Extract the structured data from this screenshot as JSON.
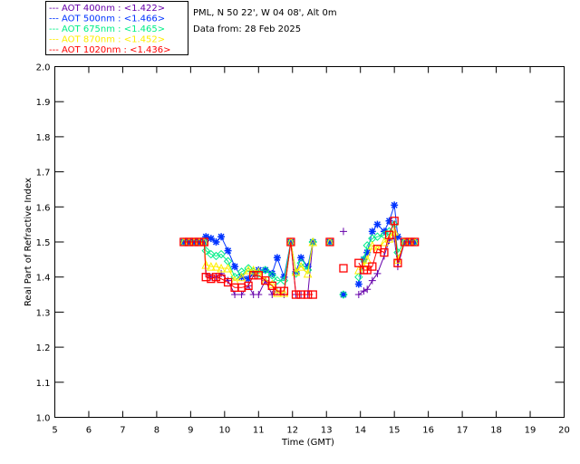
{
  "chart_data": {
    "type": "line",
    "title_lines": [
      "PML, N 50 22', W 04 08', Alt 0m",
      "Data from: 28 Feb 2025"
    ],
    "xlabel": "Time (GMT)",
    "ylabel": "Real Part of Refractive Index",
    "xlim": [
      5,
      20
    ],
    "ylim": [
      1.0,
      2.0
    ],
    "xticks": [
      "5",
      "6",
      "7",
      "8",
      "9",
      "10",
      "11",
      "12",
      "13",
      "14",
      "15",
      "16",
      "17",
      "18",
      "19",
      "20"
    ],
    "yticks": [
      "1.0",
      "1.1",
      "1.2",
      "1.3",
      "1.4",
      "1.5",
      "1.6",
      "1.7",
      "1.8",
      "1.9",
      "2.0"
    ],
    "grid": false,
    "legend_position": "top-left",
    "x": [
      8.8,
      8.95,
      9.1,
      9.25,
      9.4,
      9.45,
      9.6,
      9.75,
      9.9,
      10.1,
      10.3,
      10.5,
      10.7,
      10.85,
      11.0,
      11.2,
      11.4,
      11.55,
      11.75,
      11.95,
      12.1,
      12.25,
      12.45,
      12.6,
      13.1,
      13.5,
      13.95,
      14.1,
      14.2,
      14.35,
      14.5,
      14.7,
      14.85,
      15.0,
      15.1,
      15.3,
      15.45,
      15.6
    ],
    "series": [
      {
        "name": "AOT  400nm",
        "legend": "--- AOT  400nm : <1.422>",
        "color": "#6600aa",
        "marker": "plus",
        "values": [
          1.5,
          1.5,
          1.5,
          1.5,
          1.5,
          1.41,
          1.4,
          1.4,
          1.41,
          1.39,
          1.35,
          1.35,
          1.375,
          1.35,
          1.35,
          1.39,
          1.35,
          1.36,
          1.35,
          1.5,
          1.35,
          1.35,
          1.35,
          1.5,
          1.5,
          1.53,
          1.35,
          1.36,
          1.365,
          1.39,
          1.41,
          1.46,
          1.505,
          1.51,
          1.43,
          1.5,
          1.5,
          1.5
        ]
      },
      {
        "name": "AOT  500nm",
        "legend": "--- AOT  500nm : <1.466>",
        "color": "#0033ff",
        "marker": "asterisk",
        "values": [
          1.5,
          1.5,
          1.5,
          1.5,
          1.5,
          1.515,
          1.51,
          1.5,
          1.515,
          1.475,
          1.43,
          1.4,
          1.395,
          1.41,
          1.42,
          1.42,
          1.41,
          1.455,
          1.4,
          1.5,
          1.415,
          1.455,
          1.43,
          1.5,
          1.5,
          1.35,
          1.38,
          1.45,
          1.47,
          1.53,
          1.55,
          1.53,
          1.56,
          1.605,
          1.515,
          1.5,
          1.5,
          1.5
        ]
      },
      {
        "name": "AOT  675nm",
        "legend": "--- AOT  675nm : <1.465>",
        "color": "#00ee88",
        "marker": "diamond",
        "values": [
          1.5,
          1.5,
          1.5,
          1.5,
          1.5,
          1.475,
          1.465,
          1.46,
          1.465,
          1.445,
          1.4,
          1.415,
          1.425,
          1.415,
          1.41,
          1.42,
          1.405,
          1.39,
          1.39,
          1.5,
          1.41,
          1.44,
          1.42,
          1.5,
          1.5,
          1.35,
          1.4,
          1.45,
          1.49,
          1.51,
          1.515,
          1.52,
          1.53,
          1.55,
          1.47,
          1.5,
          1.5,
          1.5
        ]
      },
      {
        "name": "AOT  870nm",
        "legend": "--- AOT  870nm : <1.452>",
        "color": "#ffee00",
        "marker": "triangle",
        "values": [
          1.5,
          1.5,
          1.5,
          1.5,
          1.5,
          1.435,
          1.43,
          1.43,
          1.425,
          1.425,
          1.39,
          1.4,
          1.42,
          1.42,
          1.415,
          1.39,
          1.38,
          1.355,
          1.355,
          1.5,
          1.415,
          1.43,
          1.41,
          1.5,
          1.5,
          null,
          1.42,
          1.43,
          1.45,
          1.49,
          1.48,
          1.5,
          1.51,
          1.53,
          1.45,
          1.5,
          1.5,
          1.5
        ]
      },
      {
        "name": "AOT 1020nm",
        "legend": "--- AOT 1020nm : <1.436>",
        "color": "#ff0000",
        "marker": "square",
        "values": [
          1.5,
          1.5,
          1.5,
          1.5,
          1.5,
          1.4,
          1.395,
          1.4,
          1.395,
          1.385,
          1.37,
          1.37,
          1.375,
          1.405,
          1.405,
          1.39,
          1.375,
          1.36,
          1.36,
          1.5,
          1.35,
          1.35,
          1.35,
          1.35,
          1.5,
          1.425,
          1.44,
          1.42,
          1.42,
          1.43,
          1.48,
          1.47,
          1.52,
          1.56,
          1.44,
          1.5,
          1.5,
          1.5
        ]
      }
    ]
  }
}
